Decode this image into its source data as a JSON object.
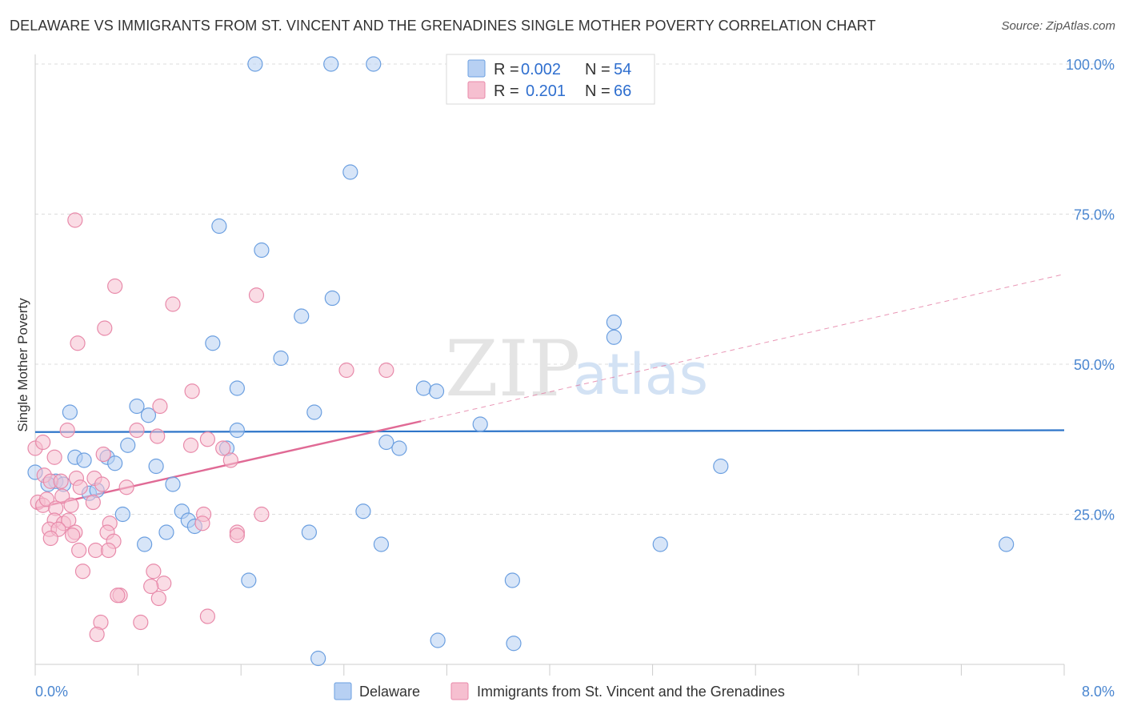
{
  "title": "DELAWARE VS IMMIGRANTS FROM ST. VINCENT AND THE GRENADINES SINGLE MOTHER POVERTY CORRELATION CHART",
  "source": "Source: ZipAtlas.com",
  "watermark": {
    "zip": "ZIP",
    "atlas": "atlas"
  },
  "legend": {
    "rows": [
      {
        "r_label": "R =",
        "r_value": "0.002",
        "n_label": "N =",
        "n_value": "54"
      },
      {
        "r_label": "R =",
        "r_value": "0.201",
        "n_label": "N =",
        "n_value": "66"
      }
    ]
  },
  "colors": {
    "delaware_fill": "#b7d0f3",
    "delaware_stroke": "#6b9fe0",
    "delaware_line": "#2e75c9",
    "svg_fill": "#f6bfd0",
    "svg_stroke": "#e88aaa",
    "svg_line": "#e06a95",
    "grid": "#dcdcdc",
    "axis_text": "#4a86d0"
  },
  "chart_data": {
    "type": "scatter",
    "xlabel": "",
    "ylabel": "Single Mother Poverty",
    "xlim": [
      0,
      8
    ],
    "ylim": [
      0,
      100
    ],
    "x_tick_labels": {
      "min": "0.0%",
      "max": "8.0%"
    },
    "y_ticks": [
      {
        "value": 25,
        "label": "25.0%"
      },
      {
        "value": 50,
        "label": "50.0%"
      },
      {
        "value": 75,
        "label": "75.0%"
      },
      {
        "value": 100,
        "label": "100.0%"
      }
    ],
    "grid": true,
    "legend_position": "top-center",
    "series": [
      {
        "name": "Delaware",
        "color": "#6b9fe0",
        "trend": {
          "x": [
            0,
            8
          ],
          "y": [
            38.7,
            39.0
          ],
          "dashed_after": null
        },
        "points": [
          [
            1.71,
            100
          ],
          [
            2.3,
            100
          ],
          [
            2.63,
            100
          ],
          [
            2.45,
            82
          ],
          [
            1.43,
            73
          ],
          [
            1.76,
            69
          ],
          [
            2.31,
            61
          ],
          [
            2.07,
            58
          ],
          [
            4.5,
            57
          ],
          [
            1.38,
            53.5
          ],
          [
            4.5,
            54.5
          ],
          [
            1.91,
            51
          ],
          [
            1.57,
            46
          ],
          [
            3.02,
            46
          ],
          [
            3.12,
            45.5
          ],
          [
            0.27,
            42
          ],
          [
            0.79,
            43
          ],
          [
            0.88,
            41.5
          ],
          [
            2.17,
            42
          ],
          [
            3.46,
            40
          ],
          [
            1.57,
            39
          ],
          [
            2.73,
            37
          ],
          [
            0.72,
            36.5
          ],
          [
            2.83,
            36
          ],
          [
            1.49,
            36
          ],
          [
            0.31,
            34.5
          ],
          [
            0.38,
            34
          ],
          [
            0.56,
            34.5
          ],
          [
            0.62,
            33.5
          ],
          [
            0.94,
            33
          ],
          [
            5.33,
            33
          ],
          [
            0.0,
            32
          ],
          [
            0.16,
            30.5
          ],
          [
            0.1,
            30
          ],
          [
            0.22,
            30
          ],
          [
            1.07,
            30
          ],
          [
            0.42,
            28.5
          ],
          [
            0.48,
            29
          ],
          [
            1.14,
            25.5
          ],
          [
            2.55,
            25.5
          ],
          [
            0.68,
            25
          ],
          [
            1.19,
            24
          ],
          [
            1.24,
            23
          ],
          [
            1.02,
            22
          ],
          [
            2.13,
            22
          ],
          [
            0.85,
            20
          ],
          [
            2.69,
            20
          ],
          [
            4.86,
            20
          ],
          [
            7.55,
            20
          ],
          [
            1.66,
            14
          ],
          [
            3.71,
            14
          ],
          [
            3.13,
            4
          ],
          [
            3.72,
            3.5
          ],
          [
            2.2,
            1
          ]
        ]
      },
      {
        "name": "Immigrants from St. Vincent and the Grenadines",
        "color": "#e88aaa",
        "trend": {
          "x": [
            0,
            3.0
          ],
          "y": [
            26.0,
            40.5
          ],
          "dashed_to": [
            8,
            65
          ]
        },
        "points": [
          [
            0.31,
            74
          ],
          [
            0.62,
            63
          ],
          [
            1.07,
            60
          ],
          [
            1.72,
            61.5
          ],
          [
            0.54,
            56
          ],
          [
            0.33,
            53.5
          ],
          [
            2.42,
            49
          ],
          [
            2.73,
            49
          ],
          [
            1.22,
            45.5
          ],
          [
            0.97,
            43
          ],
          [
            0.25,
            39
          ],
          [
            0.79,
            39
          ],
          [
            0.95,
            38
          ],
          [
            1.34,
            37.5
          ],
          [
            1.21,
            36.5
          ],
          [
            1.46,
            36
          ],
          [
            0.0,
            36
          ],
          [
            0.15,
            34.5
          ],
          [
            0.53,
            35
          ],
          [
            1.52,
            34
          ],
          [
            0.07,
            31.5
          ],
          [
            0.12,
            30.5
          ],
          [
            0.2,
            30.5
          ],
          [
            0.32,
            31
          ],
          [
            0.46,
            31
          ],
          [
            0.52,
            30
          ],
          [
            0.71,
            29.5
          ],
          [
            0.21,
            28
          ],
          [
            0.35,
            29.5
          ],
          [
            0.02,
            27
          ],
          [
            0.06,
            26.5
          ],
          [
            0.09,
            27.5
          ],
          [
            0.16,
            26
          ],
          [
            0.28,
            26.5
          ],
          [
            0.45,
            27
          ],
          [
            1.31,
            25
          ],
          [
            1.76,
            25
          ],
          [
            0.15,
            24
          ],
          [
            0.22,
            23.5
          ],
          [
            0.26,
            24
          ],
          [
            0.58,
            23.5
          ],
          [
            1.3,
            23.5
          ],
          [
            0.11,
            22.5
          ],
          [
            0.18,
            22.5
          ],
          [
            0.31,
            22
          ],
          [
            0.56,
            22
          ],
          [
            1.57,
            22
          ],
          [
            0.12,
            21
          ],
          [
            0.29,
            21.5
          ],
          [
            0.61,
            20.5
          ],
          [
            1.57,
            21.5
          ],
          [
            0.34,
            19
          ],
          [
            0.47,
            19
          ],
          [
            0.57,
            19
          ],
          [
            0.37,
            15.5
          ],
          [
            0.92,
            15.5
          ],
          [
            0.66,
            11.5
          ],
          [
            0.64,
            11.5
          ],
          [
            1.0,
            13.5
          ],
          [
            0.9,
            13
          ],
          [
            0.96,
            11
          ],
          [
            1.34,
            8
          ],
          [
            0.51,
            7
          ],
          [
            0.82,
            7
          ],
          [
            0.48,
            5
          ],
          [
            0.06,
            37
          ]
        ]
      }
    ]
  }
}
